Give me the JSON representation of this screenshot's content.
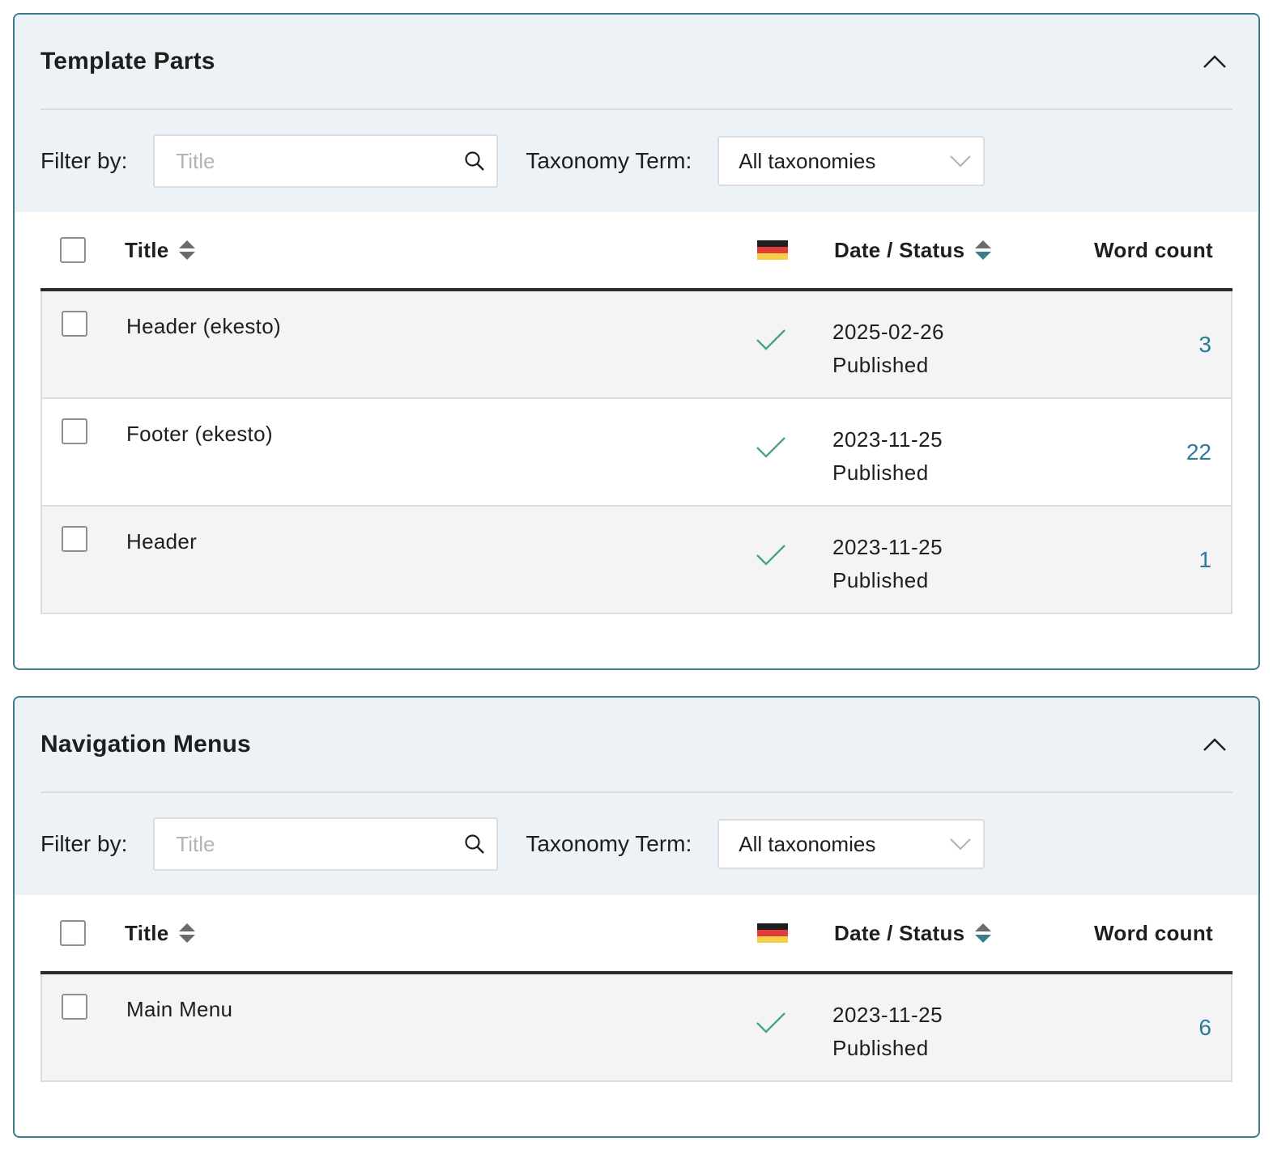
{
  "colors": {
    "panel_border": "#3d7a8a",
    "panel_header_bg": "#ecf2f5",
    "check": "#4aa38a",
    "word_count": "#2a7a9a",
    "flag": [
      "#1e1e1e",
      "#e23b3b",
      "#f5cf47"
    ]
  },
  "panels": [
    {
      "title": "Template Parts",
      "collapse_icon": "chevron-up-icon",
      "filter_label": "Filter by:",
      "search_placeholder": "Title",
      "taxonomy_label": "Taxonomy Term:",
      "taxonomy_selected": "All taxonomies",
      "columns": {
        "title": "Title",
        "language_icon": "german-flag-icon",
        "date_status": "Date / Status",
        "word_count": "Word count"
      },
      "rows": [
        {
          "title": "Header (ekesto)",
          "date": "2025-02-26",
          "status": "Published",
          "word_count": "3"
        },
        {
          "title": "Footer (ekesto)",
          "date": "2023-11-25",
          "status": "Published",
          "word_count": "22"
        },
        {
          "title": "Header",
          "date": "2023-11-25",
          "status": "Published",
          "word_count": "1"
        }
      ]
    },
    {
      "title": "Navigation Menus",
      "collapse_icon": "chevron-up-icon",
      "filter_label": "Filter by:",
      "search_placeholder": "Title",
      "taxonomy_label": "Taxonomy Term:",
      "taxonomy_selected": "All taxonomies",
      "columns": {
        "title": "Title",
        "language_icon": "german-flag-icon",
        "date_status": "Date / Status",
        "word_count": "Word count"
      },
      "rows": [
        {
          "title": "Main Menu",
          "date": "2023-11-25",
          "status": "Published",
          "word_count": "6"
        }
      ]
    }
  ]
}
